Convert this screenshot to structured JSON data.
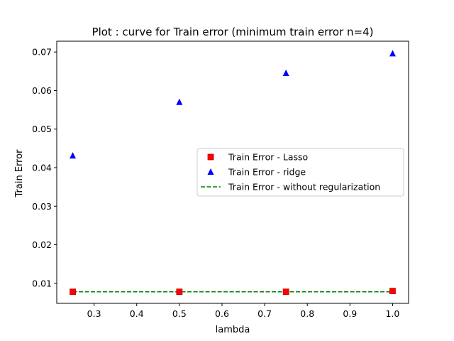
{
  "chart_data": {
    "type": "scatter",
    "title": "Plot : curve for Train error (minimum train error n=4)",
    "xlabel": "lambda",
    "ylabel": "Train Error",
    "xlim": [
      0.2125,
      1.0375
    ],
    "ylim": [
      0.0048,
      0.0728
    ],
    "xticks": [
      0.3,
      0.4,
      0.5,
      0.6,
      0.7,
      0.8,
      0.9,
      1.0
    ],
    "xtick_labels": [
      "0.3",
      "0.4",
      "0.5",
      "0.6",
      "0.7",
      "0.8",
      "0.9",
      "1.0"
    ],
    "yticks": [
      0.01,
      0.02,
      0.03,
      0.04,
      0.05,
      0.06,
      0.07
    ],
    "ytick_labels": [
      "0.01",
      "0.02",
      "0.03",
      "0.04",
      "0.05",
      "0.06",
      "0.07"
    ],
    "grid": false,
    "legend_position": "center-right",
    "series": [
      {
        "name": "Train Error - Lasso",
        "kind": "scatter",
        "marker": "square",
        "color": "#ff0000",
        "edge_color": "#c00000",
        "x": [
          0.25,
          0.5,
          0.75,
          1.0
        ],
        "y": [
          0.0078,
          0.0078,
          0.0078,
          0.008
        ]
      },
      {
        "name": "Train Error - ridge",
        "kind": "scatter",
        "marker": "triangle",
        "color": "#0000ff",
        "x": [
          0.25,
          0.5,
          0.75,
          1.0
        ],
        "y": [
          0.0431,
          0.057,
          0.0645,
          0.0696
        ]
      },
      {
        "name": "Train Error - without regularization",
        "kind": "line",
        "dash": "dashed",
        "color": "#008000",
        "x": [
          0.25,
          1.0
        ],
        "y": [
          0.0078,
          0.0078
        ]
      }
    ]
  }
}
